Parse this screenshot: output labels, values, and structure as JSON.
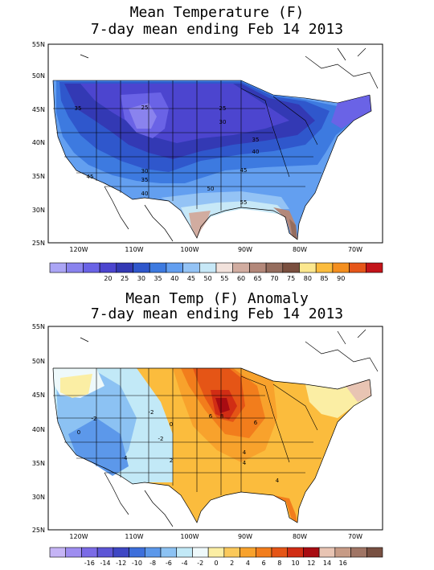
{
  "panels": [
    {
      "title_line1": "Mean Temperature (F)",
      "title_line2": "7-day mean ending Feb 14 2013",
      "lat_labels": [
        "55N",
        "50N",
        "45N",
        "40N",
        "35N",
        "30N",
        "25N"
      ],
      "lon_labels": [
        "120W",
        "110W",
        "100W",
        "90W",
        "80W",
        "70W"
      ],
      "contour_labels": [
        "35",
        "25",
        "25",
        "30",
        "35",
        "40",
        "45",
        "30",
        "35",
        "40",
        "50",
        "55",
        "45"
      ],
      "legend_ticks": [
        "20",
        "25",
        "30",
        "35",
        "40",
        "45",
        "50",
        "55",
        "60",
        "65",
        "70",
        "75",
        "80",
        "85",
        "90"
      ],
      "legend_colors": [
        "#aba5f5",
        "#8a83ee",
        "#6a63e6",
        "#4c45cf",
        "#3339b4",
        "#2f57cc",
        "#3d7ae0",
        "#639ff0",
        "#94c3f5",
        "#c7e8f7",
        "#f2e2dc",
        "#d1aca0",
        "#b3887a",
        "#956d5e",
        "#7a4f3f",
        "#fbe78e",
        "#fbbc3d",
        "#f48f1f",
        "#e6561a",
        "#c3141a"
      ]
    },
    {
      "title_line1": "Mean Temp (F) Anomaly",
      "title_line2": "7-day mean ending Feb 14 2013",
      "lat_labels": [
        "55N",
        "50N",
        "45N",
        "40N",
        "35N",
        "30N",
        "25N"
      ],
      "lon_labels": [
        "120W",
        "110W",
        "100W",
        "90W",
        "80W",
        "70W"
      ],
      "contour_labels": [
        "-2",
        "0",
        "-2",
        "-2",
        "0",
        "2",
        "6",
        "8",
        "6",
        "4",
        "-4",
        "4",
        "4"
      ],
      "legend_ticks": [
        "-16",
        "-14",
        "-12",
        "-10",
        "-8",
        "-6",
        "-4",
        "-2",
        "0",
        "2",
        "4",
        "6",
        "8",
        "10",
        "12",
        "14",
        "16"
      ],
      "legend_colors": [
        "#c5b4f5",
        "#9e8df0",
        "#7b6be6",
        "#5d56d6",
        "#3e47c4",
        "#3d6fdb",
        "#5c98ea",
        "#8cc2f3",
        "#c2e9f7",
        "#eef9fb",
        "#fbeea4",
        "#fbc95b",
        "#f8a22c",
        "#f27d1c",
        "#e55516",
        "#d12d14",
        "#a80c12",
        "#e8c4b3",
        "#c79b86",
        "#a07565",
        "#785042"
      ]
    }
  ]
}
